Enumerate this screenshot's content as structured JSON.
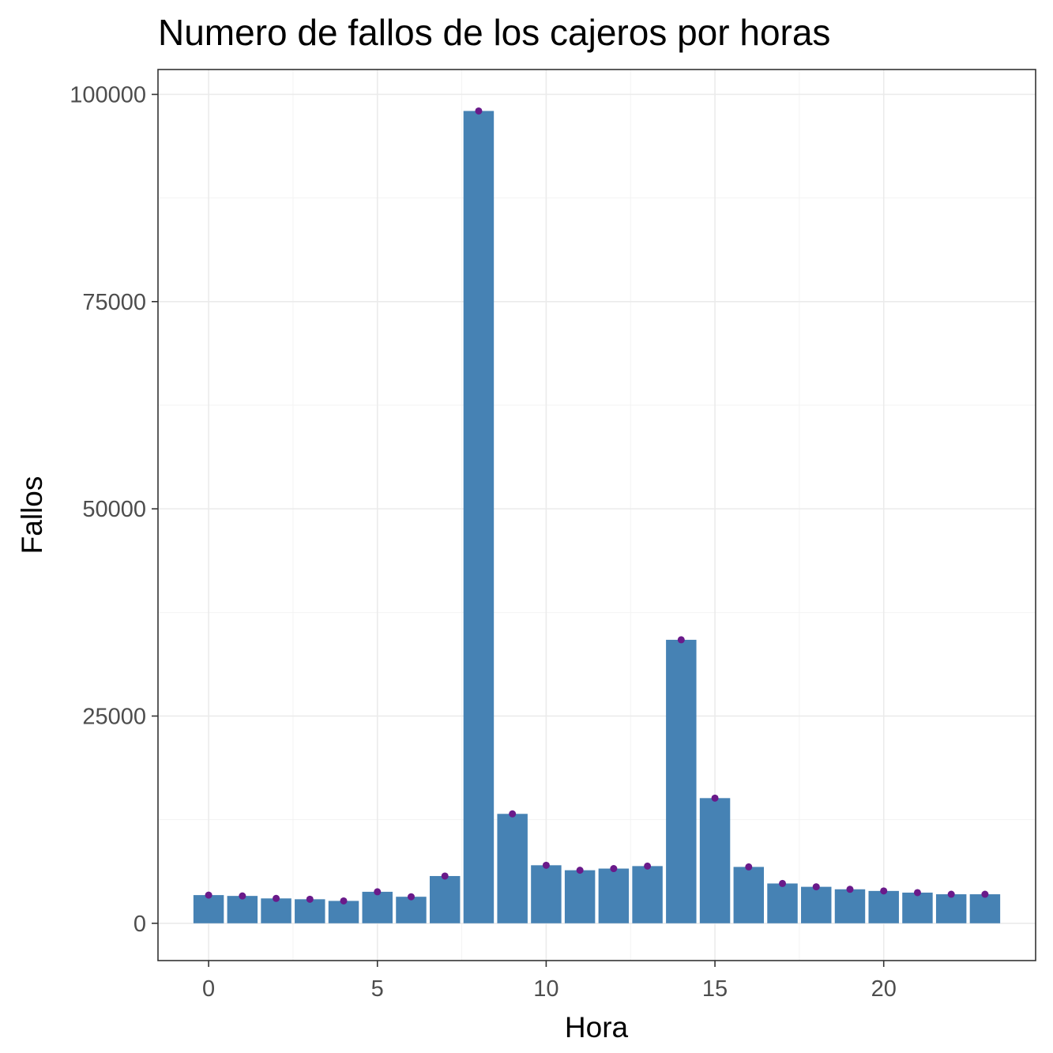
{
  "chart_data": {
    "type": "bar",
    "title": "Numero de fallos de los cajeros por horas",
    "xlabel": "Hora",
    "ylabel": "Fallos",
    "x": [
      0,
      1,
      2,
      3,
      4,
      5,
      6,
      7,
      8,
      9,
      10,
      11,
      12,
      13,
      14,
      15,
      16,
      17,
      18,
      19,
      20,
      21,
      22,
      23
    ],
    "values": [
      3400,
      3300,
      3000,
      2900,
      2700,
      3800,
      3200,
      5700,
      98000,
      13200,
      7000,
      6400,
      6600,
      6900,
      34200,
      15100,
      6800,
      4800,
      4400,
      4100,
      3900,
      3700,
      3500,
      3500
    ],
    "xlim": [
      -1.5,
      24.5
    ],
    "ylim": [
      -4500,
      103000
    ],
    "x_ticks": [
      0,
      5,
      10,
      15,
      20
    ],
    "y_ticks": [
      0,
      25000,
      50000,
      75000,
      100000
    ],
    "x_tick_labels": [
      "0",
      "5",
      "10",
      "15",
      "20"
    ],
    "y_tick_labels": [
      "0",
      "25000",
      "50000",
      "75000",
      "100000"
    ],
    "grid": true,
    "bar_color": "#4682b4",
    "point_color": "#6a1a8a"
  }
}
